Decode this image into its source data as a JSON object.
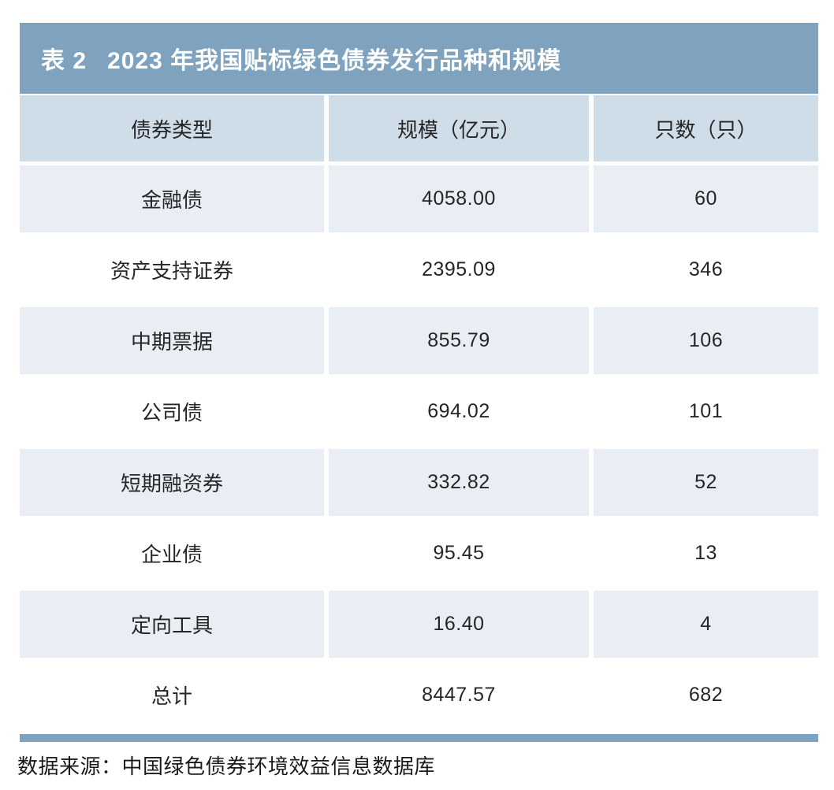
{
  "table": {
    "title_label": "表 2",
    "title_text": "2023 年我国贴标绿色债券发行品种和规模",
    "columns": [
      "债券类型",
      "规模（亿元）",
      "只数（只）"
    ],
    "rows": [
      {
        "type": "金融债",
        "scale": "4058.00",
        "count": "60"
      },
      {
        "type": "资产支持证券",
        "scale": "2395.09",
        "count": "346"
      },
      {
        "type": "中期票据",
        "scale": "855.79",
        "count": "106"
      },
      {
        "type": "公司债",
        "scale": "694.02",
        "count": "101"
      },
      {
        "type": "短期融资券",
        "scale": "332.82",
        "count": "52"
      },
      {
        "type": "企业债",
        "scale": "95.45",
        "count": "13"
      },
      {
        "type": "定向工具",
        "scale": "16.40",
        "count": "4"
      },
      {
        "type": "总计",
        "scale": "8447.57",
        "count": "682"
      }
    ]
  },
  "source": {
    "text": "数据来源：中国绿色债券环境效益信息数据库"
  },
  "colors": {
    "title_bar_blue": "#7fa3bf",
    "header_row": "#cedde8",
    "odd_row": "#e8eef4",
    "even_row": "#ffffff",
    "text": "#262626",
    "title_text": "#ffffff"
  },
  "chart_data": {
    "type": "table",
    "title": "表 2 2023 年我国贴标绿色债券发行品种和规模",
    "columns": [
      "债券类型",
      "规模（亿元）",
      "只数（只）"
    ],
    "rows": [
      [
        "金融债",
        4058.0,
        60
      ],
      [
        "资产支持证券",
        2395.09,
        346
      ],
      [
        "中期票据",
        855.79,
        106
      ],
      [
        "公司债",
        694.02,
        101
      ],
      [
        "短期融资券",
        332.82,
        52
      ],
      [
        "企业债",
        95.45,
        13
      ],
      [
        "定向工具",
        16.4,
        4
      ],
      [
        "总计",
        8447.57,
        682
      ]
    ],
    "source": "数据来源：中国绿色债券环境效益信息数据库"
  }
}
